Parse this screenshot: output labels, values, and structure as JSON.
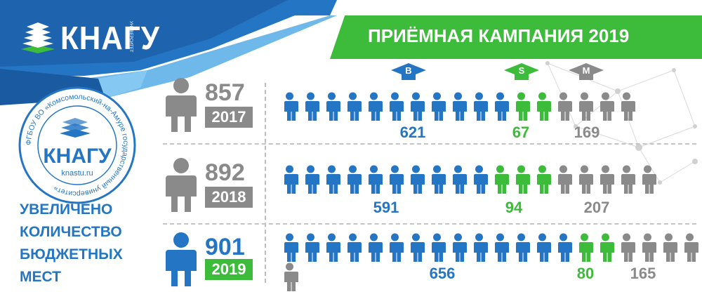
{
  "header": {
    "logo_text": "КНАГУ",
    "logo_subtext": "УНИВЕРСИТЕТ",
    "banner_title": "ПРИЁМНАЯ КАМПАНИЯ 2019"
  },
  "seal": {
    "center_text": "КНАГУ",
    "url_text": "knastu.ru",
    "ring_text": "ФГБОУ ВО «Комсомольский-на-Амуре государственный университет»"
  },
  "tagline": {
    "line1": "УВЕЛИЧЕНО",
    "line2": "КОЛИЧЕСТВО",
    "line3": "БЮДЖЕТНЫХ",
    "line4": "МЕСТ"
  },
  "badges": {
    "b": "B",
    "s": "S",
    "m": "M"
  },
  "colors": {
    "blue": "#2476c4",
    "green": "#3dbb3b",
    "gray": "#8a8a8a"
  },
  "chart_data": {
    "type": "bar",
    "categories": [
      "2017",
      "2018",
      "2019"
    ],
    "totals": [
      857,
      892,
      901
    ],
    "series": [
      {
        "name": "B",
        "values": [
          621,
          591,
          656
        ]
      },
      {
        "name": "S",
        "values": [
          67,
          94,
          80
        ]
      },
      {
        "name": "M",
        "values": [
          169,
          207,
          165
        ]
      }
    ],
    "icon_counts": {
      "2017": [
        11,
        2,
        4
      ],
      "2018": [
        10,
        3,
        5
      ],
      "2019": [
        14,
        2,
        5
      ]
    },
    "rows": [
      {
        "year": "2017",
        "total": "857",
        "b": "621",
        "s": "67",
        "m": "169"
      },
      {
        "year": "2018",
        "total": "892",
        "b": "591",
        "s": "94",
        "m": "207"
      },
      {
        "year": "2019",
        "total": "901",
        "b": "656",
        "s": "80",
        "m": "165"
      }
    ]
  }
}
